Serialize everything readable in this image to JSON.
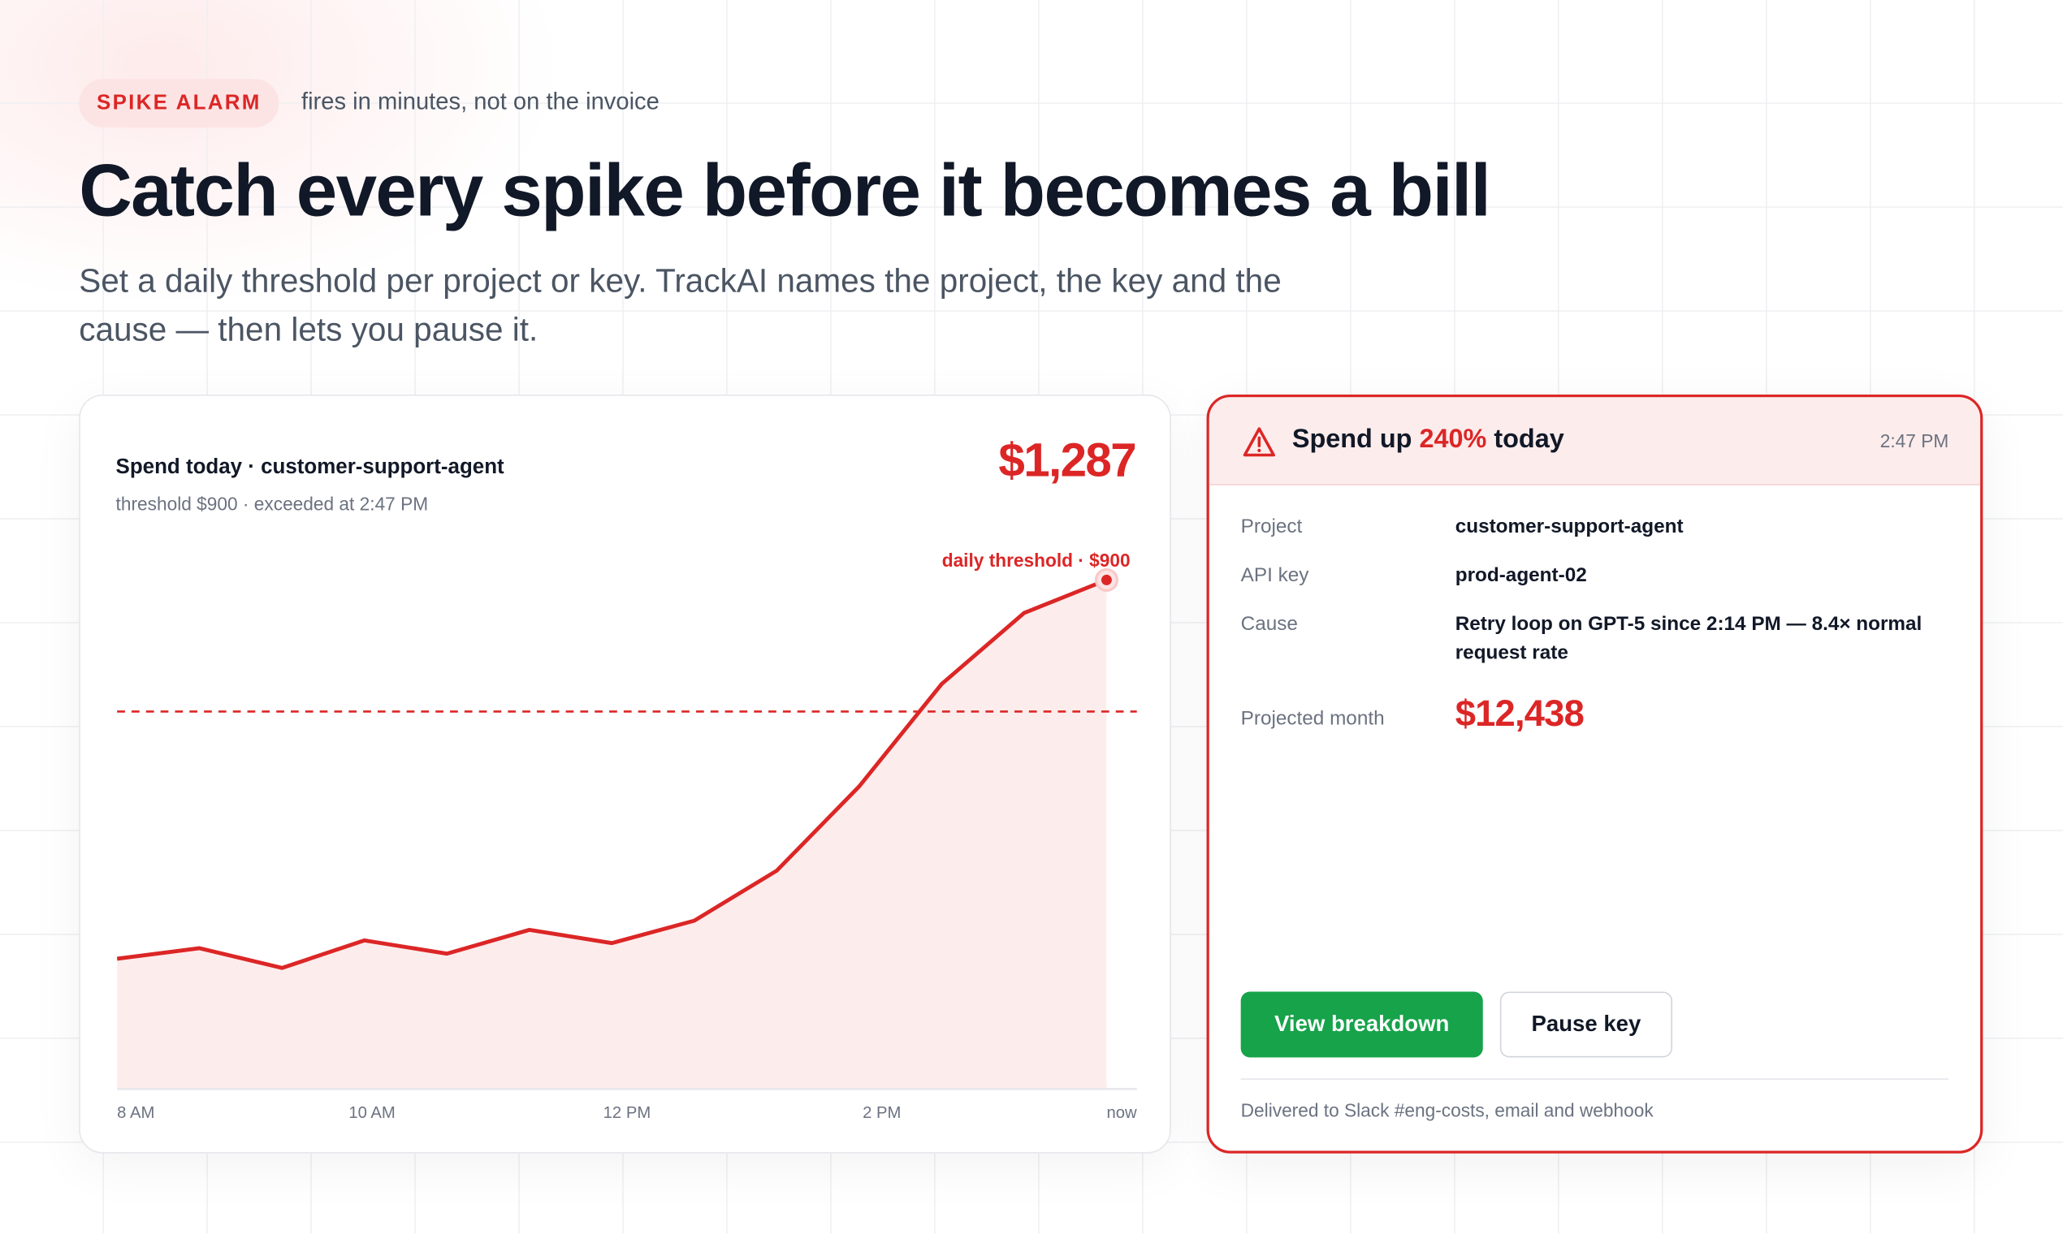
{
  "badge": "SPIKE ALARM",
  "tagline": "fires in minutes, not on the invoice",
  "heading": "Catch every spike before it becomes a bill",
  "subheading": "Set a daily threshold per project or key. TrackAI names the project, the key and the cause — then lets you pause it.",
  "chart_card": {
    "title": "Spend today · customer-support-agent",
    "subtitle": "threshold $900 · exceeded at 2:47 PM",
    "total_label": "$1,287"
  },
  "chart_data": {
    "type": "area",
    "values": [
      173,
      204,
      146,
      227,
      188,
      258,
      219,
      285,
      432,
      680,
      981,
      1190,
      1287
    ],
    "x_labels": [
      "8 AM",
      "10 AM",
      "12 PM",
      "2 PM",
      "now"
    ],
    "threshold": 900,
    "threshold_label": "daily threshold · $900",
    "ylim": [
      -210,
      1403
    ],
    "color": "#dc2626",
    "fill": "#fdecec"
  },
  "alert": {
    "title_prefix": "Spend up",
    "title_pct": "240%",
    "title_suffix": "today",
    "time": "2:47 PM",
    "rows": [
      {
        "label": "Project",
        "value": "customer-support-agent"
      },
      {
        "label": "API key",
        "value": "prod-agent-02"
      },
      {
        "label": "Cause",
        "value": "Retry loop on GPT-5 since 2:14 PM — 8.4× normal request rate"
      }
    ],
    "projected_label": "Projected month",
    "projected_value": "$12,438",
    "primary_button": "View breakdown",
    "secondary_button": "Pause key",
    "footer": "Delivered to Slack #eng-costs, email and webhook"
  }
}
